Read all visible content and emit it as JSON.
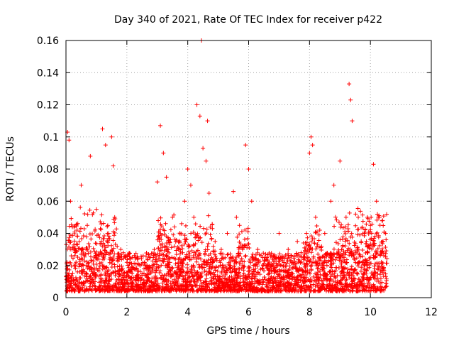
{
  "chart_data": {
    "type": "scatter",
    "title": "Day 340 of 2021, Rate Of TEC Index for receiver p422",
    "xlabel": "GPS time / hours",
    "ylabel": "ROTI / TECUs",
    "xlim": [
      0,
      12
    ],
    "ylim": [
      0,
      0.16
    ],
    "xticks": [
      "0",
      "2",
      "4",
      "6",
      "8",
      "10",
      "12"
    ],
    "yticks": [
      "0",
      "0.02",
      "0.04",
      "0.06",
      "0.08",
      "0.1",
      "0.12",
      "0.14",
      "0.16"
    ],
    "grid": true,
    "marker": "+",
    "color": "#ff0000",
    "series": [
      {
        "name": "ROTI",
        "x": [
          0.05,
          0.1,
          0.15,
          0.2,
          0.3,
          0.5,
          0.7,
          0.8,
          1.0,
          1.2,
          1.3,
          1.4,
          1.5,
          1.55,
          1.6,
          1.8,
          2.0,
          2.3,
          2.6,
          2.9,
          3.0,
          3.1,
          3.2,
          3.3,
          3.5,
          3.7,
          3.8,
          3.9,
          4.0,
          4.1,
          4.2,
          4.3,
          4.4,
          4.45,
          4.5,
          4.6,
          4.65,
          4.7,
          4.9,
          5.1,
          5.3,
          5.5,
          5.6,
          5.7,
          5.8,
          5.9,
          6.0,
          6.1,
          6.3,
          6.6,
          7.0,
          7.3,
          7.6,
          7.9,
          8.0,
          8.05,
          8.1,
          8.2,
          8.5,
          8.7,
          8.8,
          9.0,
          9.2,
          9.3,
          9.35,
          9.4,
          9.6,
          9.8,
          9.9,
          10.0,
          10.1,
          10.2,
          10.3,
          10.4,
          10.5
        ],
        "y": [
          0.103,
          0.098,
          0.06,
          0.03,
          0.02,
          0.07,
          0.045,
          0.088,
          0.055,
          0.105,
          0.095,
          0.04,
          0.1,
          0.082,
          0.05,
          0.03,
          0.022,
          0.018,
          0.02,
          0.03,
          0.072,
          0.107,
          0.09,
          0.075,
          0.05,
          0.03,
          0.02,
          0.06,
          0.08,
          0.07,
          0.05,
          0.12,
          0.113,
          0.16,
          0.093,
          0.085,
          0.11,
          0.065,
          0.035,
          0.03,
          0.04,
          0.066,
          0.05,
          0.045,
          0.03,
          0.095,
          0.08,
          0.06,
          0.03,
          0.025,
          0.04,
          0.03,
          0.035,
          0.04,
          0.09,
          0.1,
          0.095,
          0.05,
          0.04,
          0.06,
          0.07,
          0.085,
          0.05,
          0.133,
          0.123,
          0.11,
          0.05,
          0.04,
          0.05,
          0.045,
          0.083,
          0.06,
          0.05,
          0.048,
          0.04
        ]
      }
    ]
  }
}
